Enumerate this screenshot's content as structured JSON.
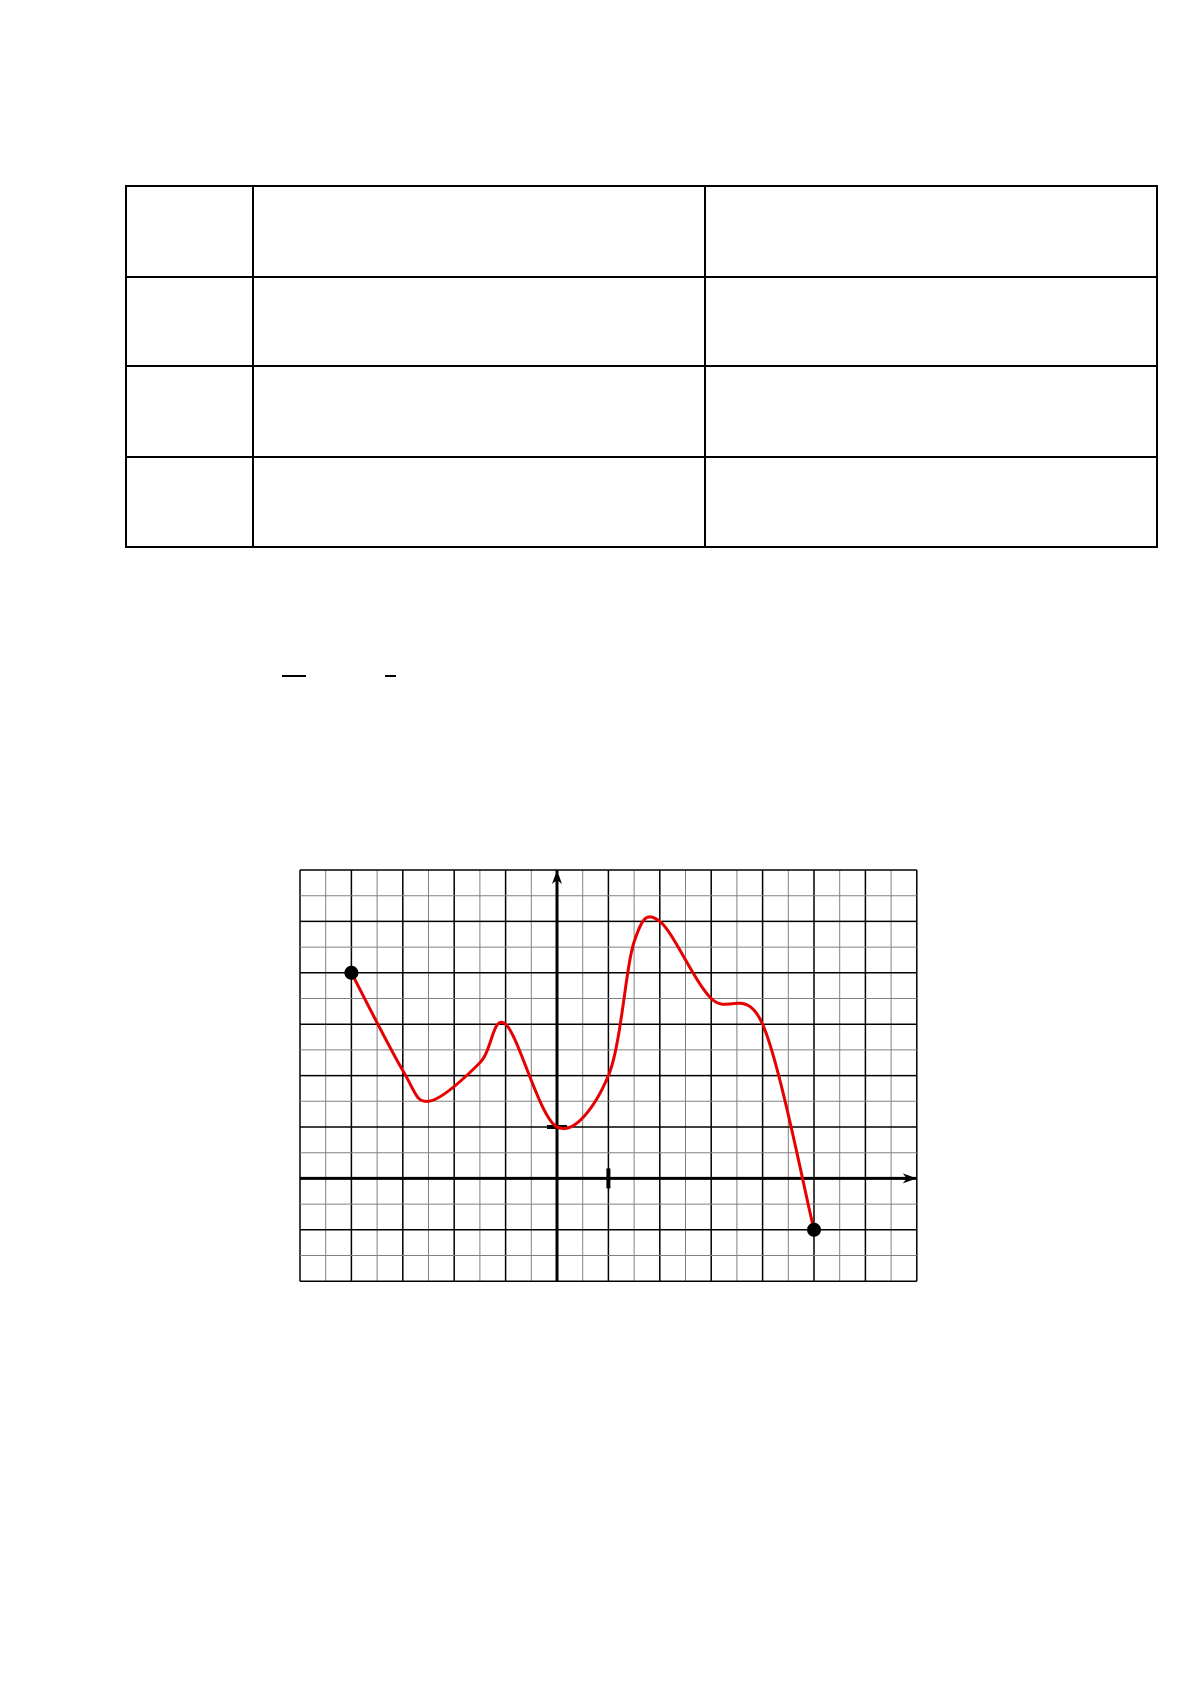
{
  "table": {
    "rows": [
      [
        "",
        "",
        ""
      ],
      [
        "",
        "",
        ""
      ],
      [
        "",
        "",
        ""
      ],
      [
        "",
        "",
        ""
      ]
    ]
  },
  "colors": {
    "curve": "#e60000",
    "grid_major": "#000000",
    "grid_minor": "#808080"
  },
  "chart_data": {
    "type": "line",
    "title": "",
    "xlabel": "",
    "ylabel": "",
    "xlim": [
      -5,
      7
    ],
    "ylim": [
      -2,
      6
    ],
    "grid": true,
    "minor_grid_step": 0.5,
    "unit_ticks": {
      "x": 1,
      "y": 1
    },
    "series": [
      {
        "x": [
          -4,
          -3,
          -2.5,
          -1.5,
          -1,
          0,
          1,
          1.5,
          2,
          3,
          4,
          5
        ],
        "y": [
          4,
          2.1,
          1.5,
          2.25,
          3,
          1,
          2,
          4.6,
          5,
          3.5,
          3,
          -1
        ],
        "endpoints": "closed"
      }
    ]
  }
}
